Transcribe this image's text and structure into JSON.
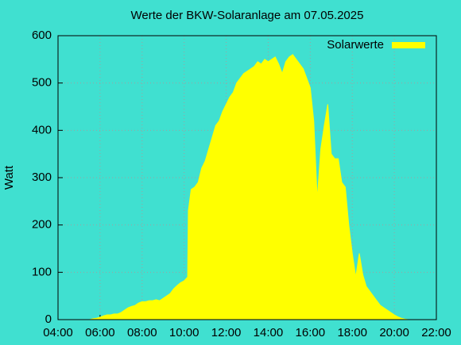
{
  "chart_data": {
    "type": "area",
    "title": "Werte der BKW-Solaranlage am 07.05.2025",
    "y_label": "Watt",
    "background": "#40e0d0",
    "grid": true,
    "legend_position": "top-right",
    "x": [
      330,
      340,
      350,
      360,
      370,
      380,
      390,
      400,
      410,
      420,
      430,
      440,
      450,
      460,
      470,
      480,
      490,
      500,
      510,
      520,
      530,
      540,
      550,
      560,
      570,
      580,
      590,
      600,
      610,
      612,
      620,
      630,
      640,
      650,
      660,
      670,
      680,
      690,
      700,
      710,
      720,
      730,
      740,
      750,
      760,
      770,
      780,
      790,
      800,
      810,
      820,
      830,
      840,
      850,
      860,
      870,
      880,
      890,
      900,
      910,
      920,
      930,
      940,
      950,
      960,
      970,
      980,
      990,
      1000,
      1010,
      1020,
      1030,
      1040,
      1050,
      1060,
      1070,
      1080,
      1090,
      1100,
      1110,
      1120,
      1130,
      1140,
      1150,
      1160,
      1170,
      1180,
      1190,
      1200,
      1210,
      1220,
      1230,
      1240
    ],
    "series": [
      {
        "name": "Solarwerte",
        "color": "#ffff00",
        "values": [
          0,
          2,
          3,
          5,
          8,
          10,
          10,
          12,
          12,
          15,
          20,
          25,
          28,
          30,
          35,
          38,
          38,
          40,
          40,
          42,
          40,
          45,
          50,
          55,
          65,
          72,
          78,
          82,
          90,
          230,
          275,
          280,
          290,
          320,
          335,
          360,
          385,
          410,
          420,
          440,
          455,
          470,
          480,
          500,
          510,
          520,
          525,
          530,
          535,
          545,
          540,
          550,
          545,
          550,
          555,
          540,
          520,
          545,
          555,
          560,
          550,
          540,
          530,
          510,
          490,
          420,
          255,
          360,
          410,
          455,
          350,
          340,
          340,
          290,
          280,
          200,
          140,
          90,
          140,
          95,
          70,
          60,
          50,
          40,
          30,
          25,
          20,
          15,
          10,
          6,
          3,
          1,
          0
        ]
      }
    ],
    "xlim": [
      240,
      1320
    ],
    "xticks": [
      {
        "value": 240,
        "label": "04:00"
      },
      {
        "value": 360,
        "label": "06:00"
      },
      {
        "value": 480,
        "label": "08:00"
      },
      {
        "value": 600,
        "label": "10:00"
      },
      {
        "value": 720,
        "label": "12:00"
      },
      {
        "value": 840,
        "label": "14:00"
      },
      {
        "value": 960,
        "label": "16:00"
      },
      {
        "value": 1080,
        "label": "18:00"
      },
      {
        "value": 1200,
        "label": "20:00"
      },
      {
        "value": 1320,
        "label": "22:00"
      }
    ],
    "ylim": [
      0,
      600
    ],
    "yticks": [
      0,
      100,
      200,
      300,
      400,
      500,
      600
    ]
  }
}
